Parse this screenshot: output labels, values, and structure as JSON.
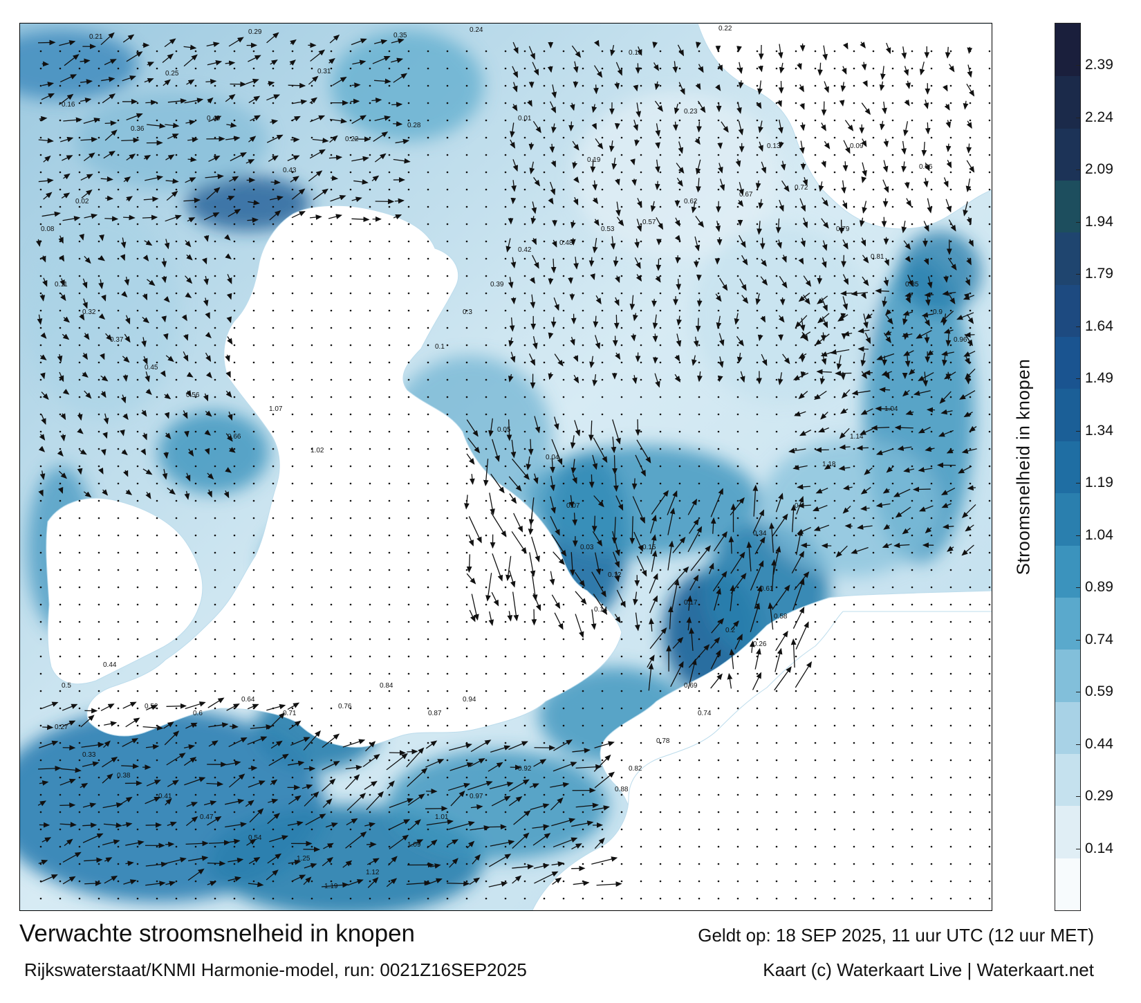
{
  "title": "Verwachte stroomsnelheid in knopen",
  "valid_time": "Geldt op: 18 SEP 2025, 11 uur UTC (12 uur MET)",
  "source": "Rijkswaterstaat/KNMI Harmonie-model, run: 0021Z16SEP2025",
  "credit": "Kaart (c) Waterkaart Live | Waterkaart.net",
  "colorbar": {
    "label": "Stroomsnelheid in knopen",
    "ticks": [
      "2.39",
      "2.24",
      "2.09",
      "1.94",
      "1.79",
      "1.64",
      "1.49",
      "1.34",
      "1.19",
      "1.04",
      "0.89",
      "0.74",
      "0.59",
      "0.44",
      "0.29",
      "0.14"
    ],
    "colors": [
      "#f7fbfd",
      "#e0eef5",
      "#c5e1ee",
      "#a8d2e6",
      "#82bfda",
      "#5aa9cc",
      "#3b93bd",
      "#2a7fae",
      "#1f6ea3",
      "#1b5f97",
      "#1a5490",
      "#1d4a80",
      "#1f456f",
      "#1d4e5e",
      "#1c3357",
      "#1b2a4a",
      "#1a1f3c"
    ]
  },
  "map_labels": [
    {
      "text": "0.21"
    },
    {
      "text": "0.25"
    },
    {
      "text": "0.29"
    },
    {
      "text": "0.31"
    },
    {
      "text": "0.35"
    },
    {
      "text": "0.24"
    },
    {
      "text": "0.18"
    },
    {
      "text": "0.22"
    },
    {
      "text": "0.16"
    },
    {
      "text": "0.36"
    },
    {
      "text": "0.49"
    },
    {
      "text": "0.43"
    },
    {
      "text": "0.22"
    },
    {
      "text": "0.28"
    },
    {
      "text": "0.01"
    },
    {
      "text": "0.19"
    },
    {
      "text": "0.23"
    },
    {
      "text": "0.13"
    },
    {
      "text": "0.09"
    },
    {
      "text": "0.06"
    },
    {
      "text": "0.05"
    },
    {
      "text": "0.04"
    },
    {
      "text": "0.07"
    },
    {
      "text": "0.03"
    },
    {
      "text": "0.12"
    },
    {
      "text": "0.14"
    },
    {
      "text": "0.15"
    },
    {
      "text": "0.17"
    },
    {
      "text": "0.2"
    },
    {
      "text": "0.26"
    },
    {
      "text": "0.58"
    },
    {
      "text": "0.61"
    },
    {
      "text": "0.69"
    },
    {
      "text": "0.74"
    },
    {
      "text": "0.78"
    },
    {
      "text": "0.82"
    },
    {
      "text": "0.88"
    },
    {
      "text": "0.92"
    },
    {
      "text": "0.97"
    },
    {
      "text": "1.01"
    },
    {
      "text": "1.09"
    },
    {
      "text": "1.12"
    },
    {
      "text": "1.19"
    },
    {
      "text": "1.25"
    },
    {
      "text": "0.54"
    },
    {
      "text": "0.47"
    },
    {
      "text": "0.41"
    },
    {
      "text": "0.38"
    },
    {
      "text": "0.33"
    },
    {
      "text": "0.27"
    },
    {
      "text": "0.5"
    },
    {
      "text": "0.44"
    },
    {
      "text": "0.52"
    },
    {
      "text": "0.6"
    },
    {
      "text": "0.64"
    },
    {
      "text": "0.71"
    },
    {
      "text": "0.76"
    },
    {
      "text": "0.84"
    },
    {
      "text": "0.87"
    },
    {
      "text": "0.94"
    },
    {
      "text": "1.02"
    },
    {
      "text": "1.07"
    },
    {
      "text": "0.66"
    },
    {
      "text": "0.56"
    },
    {
      "text": "0.45"
    },
    {
      "text": "0.37"
    },
    {
      "text": "0.32"
    },
    {
      "text": "0.11"
    },
    {
      "text": "0.08"
    },
    {
      "text": "0.02"
    },
    {
      "text": "0.1"
    },
    {
      "text": "0.3"
    },
    {
      "text": "0.39"
    },
    {
      "text": "0.42"
    },
    {
      "text": "0.48"
    },
    {
      "text": "0.53"
    },
    {
      "text": "0.57"
    },
    {
      "text": "0.62"
    },
    {
      "text": "0.67"
    },
    {
      "text": "0.72"
    },
    {
      "text": "0.79"
    },
    {
      "text": "0.81"
    },
    {
      "text": "0.85"
    },
    {
      "text": "0.9"
    },
    {
      "text": "0.96"
    },
    {
      "text": "1.04"
    },
    {
      "text": "1.14"
    },
    {
      "text": "1.18"
    },
    {
      "text": "0.4"
    },
    {
      "text": "0.34"
    }
  ]
}
